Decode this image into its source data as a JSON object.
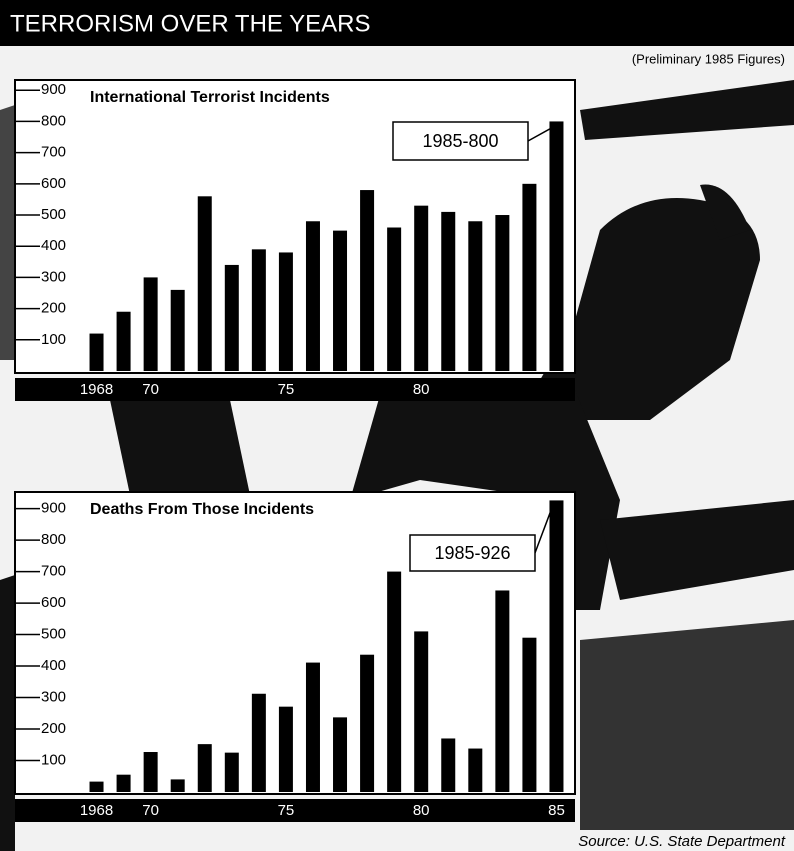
{
  "title": "TERRORISM OVER THE YEARS",
  "note": "(Preliminary 1985 Figures)",
  "source": "Source: U.S. State Department",
  "chart_data": [
    {
      "type": "bar",
      "title": "International Terrorist Incidents",
      "annotation": "1985-800",
      "categories": [
        "1968",
        null,
        "70",
        null,
        null,
        null,
        null,
        "75",
        null,
        null,
        null,
        null,
        "80",
        null,
        null,
        null,
        null,
        null
      ],
      "values": [
        120,
        190,
        300,
        260,
        560,
        340,
        390,
        380,
        480,
        450,
        580,
        460,
        530,
        510,
        480,
        500,
        600,
        800
      ],
      "color": "#000000",
      "ylim": [
        0,
        920
      ],
      "yticks": [
        100,
        200,
        300,
        400,
        500,
        600,
        700,
        800,
        900
      ]
    },
    {
      "type": "bar",
      "title": "Deaths From Those Incidents",
      "annotation": "1985-926",
      "categories": [
        "1968",
        null,
        "70",
        null,
        null,
        null,
        null,
        "75",
        null,
        null,
        null,
        null,
        "80",
        null,
        null,
        null,
        null,
        "85"
      ],
      "values": [
        33,
        55,
        127,
        40,
        152,
        125,
        312,
        271,
        411,
        237,
        436,
        700,
        510,
        170,
        138,
        640,
        490,
        926
      ],
      "color": "#000000",
      "ylim": [
        0,
        940
      ],
      "yticks": [
        100,
        200,
        300,
        400,
        500,
        600,
        700,
        800,
        900
      ]
    }
  ]
}
